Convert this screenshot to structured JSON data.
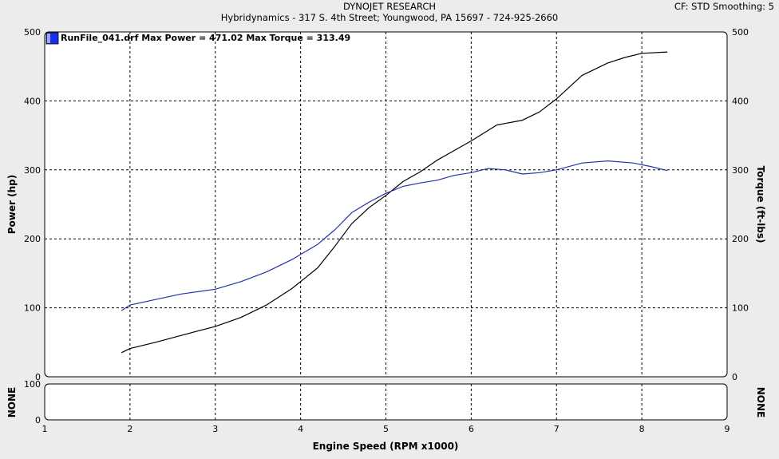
{
  "header": {
    "title": "DYNOJET RESEARCH",
    "subtitle": "Hybridynamics - 317 S. 4th Street; Youngwood, PA 15697 - 724-925-2660",
    "cf_info": "CF: STD  Smoothing: 5"
  },
  "chart_data": [
    {
      "type": "line",
      "legend": "RunFile_041.drf Max Power = 471.02 Max Torque = 313.49",
      "legend_color": "#0000ee",
      "xlabel": "Engine Speed (RPM x1000)",
      "ylabel_left": "Power (hp)",
      "ylabel_right": "Torque (ft-lbs)",
      "xlim": [
        1,
        9
      ],
      "x_ticks": [
        "1",
        "2",
        "3",
        "4",
        "5",
        "6",
        "7",
        "8",
        "9"
      ],
      "ylim": [
        0,
        500
      ],
      "y_ticks": [
        "0",
        "100",
        "200",
        "300",
        "400",
        "500"
      ],
      "grid": true,
      "series": [
        {
          "color": "#000000",
          "x": [
            1.9,
            2.0,
            2.3,
            2.6,
            3.0,
            3.3,
            3.6,
            3.9,
            4.2,
            4.4,
            4.6,
            4.8,
            5.0,
            5.2,
            5.4,
            5.6,
            5.8,
            6.0,
            6.3,
            6.6,
            6.8,
            7.0,
            7.3,
            7.6,
            7.8,
            8.0,
            8.3
          ],
          "y": [
            35,
            41,
            50,
            60,
            73,
            86,
            104,
            128,
            158,
            189,
            222,
            245,
            263,
            283,
            297,
            314,
            328,
            342,
            365,
            372,
            384,
            403,
            437,
            455,
            463,
            469,
            471
          ]
        },
        {
          "color": "#2233aa",
          "x": [
            1.9,
            2.0,
            2.3,
            2.6,
            3.0,
            3.3,
            3.6,
            3.9,
            4.2,
            4.4,
            4.6,
            4.8,
            5.0,
            5.2,
            5.4,
            5.6,
            5.8,
            6.0,
            6.2,
            6.4,
            6.6,
            6.8,
            7.0,
            7.3,
            7.6,
            7.9,
            8.1,
            8.3
          ],
          "y": [
            96,
            104,
            112,
            120,
            127,
            138,
            152,
            170,
            192,
            213,
            238,
            253,
            266,
            276,
            281,
            285,
            292,
            296,
            302,
            300,
            294,
            296,
            300,
            310,
            313,
            310,
            305,
            299
          ]
        }
      ]
    },
    {
      "type": "line",
      "ylabel_left": "NONE",
      "ylabel_right": "NONE",
      "xlim": [
        1,
        9
      ],
      "ylim": [
        0,
        100
      ],
      "y_ticks": [
        "0",
        "100"
      ],
      "grid": true,
      "series": []
    }
  ]
}
